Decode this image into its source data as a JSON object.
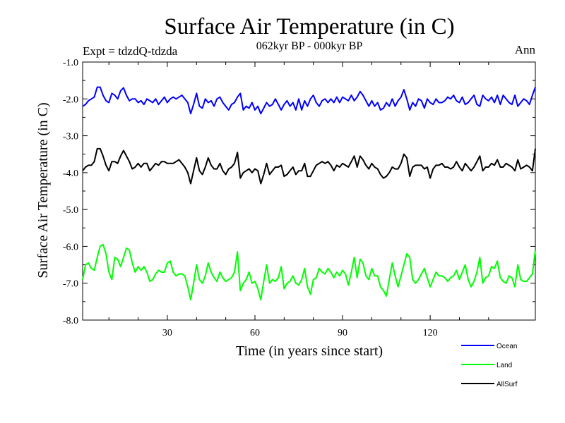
{
  "chart_data": {
    "type": "line",
    "title": "Surface Air Temperature (in C)",
    "subtitle": "062kyr BP - 000kyr BP",
    "experiment": "Expt = tdzdQ-tdzda",
    "season": "Ann",
    "xlabel": "Time (in years since start)",
    "ylabel": "Surface Air Temperature (in C)",
    "xlim": [
      1,
      156
    ],
    "ylim": [
      -8.0,
      -1.0
    ],
    "x_ticks": [
      30,
      60,
      90,
      120
    ],
    "x_tick_labels": [
      "30",
      "60",
      "90",
      "120"
    ],
    "y_ticks": [
      -8.0,
      -7.0,
      -6.0,
      -5.0,
      -4.0,
      -3.0,
      -2.0,
      -1.0
    ],
    "y_tick_labels": [
      "-8.0",
      "-7.0",
      "-6.0",
      "-5.0",
      "-4.0",
      "-3.0",
      "-2.0",
      "-1.0"
    ],
    "legend_position": "bottom-right",
    "x": [
      1,
      2,
      3,
      4,
      5,
      6,
      7,
      8,
      9,
      10,
      11,
      12,
      13,
      14,
      15,
      16,
      17,
      18,
      19,
      20,
      21,
      22,
      23,
      24,
      25,
      26,
      27,
      28,
      29,
      30,
      31,
      32,
      33,
      34,
      35,
      36,
      37,
      38,
      39,
      40,
      41,
      42,
      43,
      44,
      45,
      46,
      47,
      48,
      49,
      50,
      51,
      52,
      53,
      54,
      55,
      56,
      57,
      58,
      59,
      60,
      61,
      62,
      63,
      64,
      65,
      66,
      67,
      68,
      69,
      70,
      71,
      72,
      73,
      74,
      75,
      76,
      77,
      78,
      79,
      80,
      81,
      82,
      83,
      84,
      85,
      86,
      87,
      88,
      89,
      90,
      91,
      92,
      93,
      94,
      95,
      96,
      97,
      98,
      99,
      100,
      101,
      102,
      103,
      104,
      105,
      106,
      107,
      108,
      109,
      110,
      111,
      112,
      113,
      114,
      115,
      116,
      117,
      118,
      119,
      120,
      121,
      122,
      123,
      124,
      125,
      126,
      127,
      128,
      129,
      130,
      131,
      132,
      133,
      134,
      135,
      136,
      137,
      138,
      139,
      140,
      141,
      142,
      143,
      144,
      145,
      146,
      147,
      148,
      149,
      150,
      151,
      152,
      153,
      154,
      155,
      156
    ],
    "series": [
      {
        "name": "Ocean",
        "color": "#0000ff",
        "values": [
          -2.2,
          -2.15,
          -2.05,
          -2.0,
          -1.95,
          -1.68,
          -1.68,
          -1.9,
          -2.05,
          -2.1,
          -1.85,
          -1.9,
          -2.0,
          -1.78,
          -1.7,
          -1.9,
          -2.05,
          -2.0,
          -2.0,
          -2.1,
          -2.05,
          -2.15,
          -2.0,
          -2.05,
          -2.1,
          -2.0,
          -2.15,
          -2.05,
          -1.95,
          -2.1,
          -2.0,
          -1.95,
          -2.0,
          -1.95,
          -1.9,
          -2.0,
          -2.1,
          -2.4,
          -2.15,
          -1.85,
          -2.2,
          -2.25,
          -2.0,
          -2.1,
          -2.05,
          -2.2,
          -2.0,
          -1.95,
          -2.1,
          -2.2,
          -2.3,
          -2.15,
          -2.1,
          -1.95,
          -1.85,
          -2.3,
          -2.2,
          -2.25,
          -2.1,
          -2.3,
          -2.2,
          -2.4,
          -2.25,
          -2.1,
          -2.2,
          -2.15,
          -2.0,
          -2.15,
          -2.3,
          -2.15,
          -2.05,
          -2.2,
          -2.1,
          -2.3,
          -2.0,
          -2.3,
          -2.05,
          -2.2,
          -2.0,
          -1.9,
          -2.1,
          -2.2,
          -2.05,
          -2.0,
          -2.1,
          -2.0,
          -2.1,
          -1.95,
          -2.1,
          -1.95,
          -2.0,
          -2.05,
          -1.9,
          -2.05,
          -1.95,
          -1.8,
          -1.9,
          -2.05,
          -2.2,
          -2.05,
          -2.2,
          -2.1,
          -2.3,
          -2.25,
          -2.1,
          -2.2,
          -2.0,
          -2.2,
          -2.05,
          -1.95,
          -1.75,
          -2.0,
          -2.3,
          -2.1,
          -2.2,
          -2.0,
          -2.05,
          -2.25,
          -2.0,
          -2.1,
          -2.15,
          -2.0,
          -2.1,
          -2.1,
          -2.05,
          -1.95,
          -2.0,
          -1.9,
          -2.05,
          -2.1,
          -1.95,
          -2.15,
          -2.1,
          -2.0,
          -1.9,
          -2.15,
          -2.2,
          -1.9,
          -2.0,
          -2.05,
          -1.95,
          -2.1,
          -1.9,
          -2.15,
          -1.9,
          -2.0,
          -2.1,
          -2.15,
          -1.9,
          -2.2,
          -2.1,
          -2.0,
          -2.05,
          -2.15,
          -1.9,
          -1.68
        ]
      },
      {
        "name": "Land",
        "color": "#00ff00",
        "values": [
          -6.9,
          -6.5,
          -6.45,
          -6.6,
          -6.65,
          -6.3,
          -6.0,
          -5.95,
          -6.2,
          -6.7,
          -6.9,
          -6.3,
          -6.35,
          -6.55,
          -6.3,
          -6.05,
          -6.1,
          -6.45,
          -6.7,
          -6.55,
          -6.65,
          -6.55,
          -6.7,
          -6.95,
          -6.9,
          -6.75,
          -6.65,
          -6.7,
          -6.7,
          -6.45,
          -6.4,
          -6.7,
          -6.8,
          -6.75,
          -6.75,
          -6.8,
          -7.1,
          -7.45,
          -7.0,
          -6.5,
          -6.9,
          -7.0,
          -6.8,
          -6.45,
          -6.7,
          -6.85,
          -6.95,
          -6.7,
          -6.85,
          -6.95,
          -6.9,
          -6.85,
          -6.7,
          -6.15,
          -7.2,
          -7.0,
          -6.9,
          -6.7,
          -7.0,
          -6.95,
          -7.15,
          -7.45,
          -6.95,
          -6.5,
          -7.0,
          -6.9,
          -6.95,
          -6.85,
          -6.55,
          -7.15,
          -7.0,
          -6.95,
          -6.8,
          -7.0,
          -7.05,
          -6.9,
          -6.6,
          -7.1,
          -7.3,
          -6.9,
          -6.85,
          -6.6,
          -6.7,
          -6.75,
          -6.6,
          -6.7,
          -6.85,
          -6.7,
          -6.8,
          -6.65,
          -6.75,
          -7.05,
          -6.7,
          -6.3,
          -6.85,
          -6.35,
          -6.45,
          -6.8,
          -6.9,
          -6.6,
          -6.8,
          -6.8,
          -7.1,
          -7.2,
          -7.35,
          -6.9,
          -6.45,
          -6.8,
          -7.1,
          -6.8,
          -6.5,
          -6.2,
          -6.3,
          -6.9,
          -7.0,
          -6.9,
          -6.75,
          -6.6,
          -6.85,
          -7.1,
          -6.9,
          -6.7,
          -6.8,
          -6.8,
          -6.85,
          -6.95,
          -6.85,
          -6.8,
          -6.65,
          -6.9,
          -6.7,
          -6.5,
          -6.9,
          -7.1,
          -6.95,
          -6.7,
          -6.3,
          -7.0,
          -6.85,
          -6.8,
          -6.55,
          -6.6,
          -6.4,
          -6.85,
          -6.95,
          -7.0,
          -6.8,
          -6.85,
          -7.1,
          -6.5,
          -6.9,
          -6.95,
          -6.95,
          -6.85,
          -6.75,
          -6.1
        ]
      },
      {
        "name": "AllSurf",
        "color": "#000000",
        "values": [
          -3.95,
          -3.85,
          -3.8,
          -3.8,
          -3.7,
          -3.35,
          -3.35,
          -3.55,
          -3.8,
          -3.95,
          -3.7,
          -3.7,
          -3.75,
          -3.55,
          -3.4,
          -3.55,
          -3.7,
          -3.9,
          -3.85,
          -3.75,
          -3.85,
          -3.75,
          -3.75,
          -3.95,
          -3.85,
          -3.75,
          -3.8,
          -3.7,
          -3.7,
          -3.75,
          -3.75,
          -3.75,
          -3.7,
          -3.65,
          -3.75,
          -3.85,
          -4.0,
          -4.3,
          -3.95,
          -3.6,
          -3.95,
          -4.05,
          -3.85,
          -3.6,
          -3.8,
          -3.9,
          -3.9,
          -3.75,
          -3.95,
          -4.05,
          -3.9,
          -3.85,
          -3.75,
          -3.45,
          -4.15,
          -4.0,
          -3.95,
          -3.9,
          -4.0,
          -3.9,
          -3.95,
          -4.3,
          -4.05,
          -3.75,
          -4.05,
          -3.95,
          -3.85,
          -3.85,
          -3.8,
          -4.1,
          -4.05,
          -3.95,
          -3.85,
          -4.05,
          -3.95,
          -3.95,
          -3.75,
          -4.1,
          -4.1,
          -3.95,
          -3.8,
          -3.75,
          -3.7,
          -3.75,
          -3.7,
          -3.8,
          -3.95,
          -3.8,
          -3.85,
          -3.75,
          -3.8,
          -3.85,
          -3.7,
          -3.55,
          -3.85,
          -3.55,
          -3.65,
          -3.8,
          -3.9,
          -3.75,
          -3.85,
          -3.9,
          -4.05,
          -4.15,
          -4.1,
          -4.0,
          -3.85,
          -3.9,
          -3.9,
          -3.75,
          -3.5,
          -3.6,
          -4.1,
          -3.85,
          -3.8,
          -3.8,
          -3.8,
          -3.9,
          -3.85,
          -4.15,
          -3.9,
          -3.8,
          -3.8,
          -3.75,
          -3.85,
          -3.85,
          -3.9,
          -3.85,
          -3.7,
          -3.85,
          -3.95,
          -3.75,
          -3.85,
          -3.95,
          -3.85,
          -3.7,
          -3.55,
          -3.95,
          -3.85,
          -3.85,
          -3.75,
          -3.8,
          -3.65,
          -3.85,
          -3.85,
          -3.75,
          -3.8,
          -3.85,
          -3.95,
          -3.65,
          -3.9,
          -3.85,
          -3.8,
          -3.85,
          -3.95,
          -3.35
        ]
      }
    ]
  }
}
